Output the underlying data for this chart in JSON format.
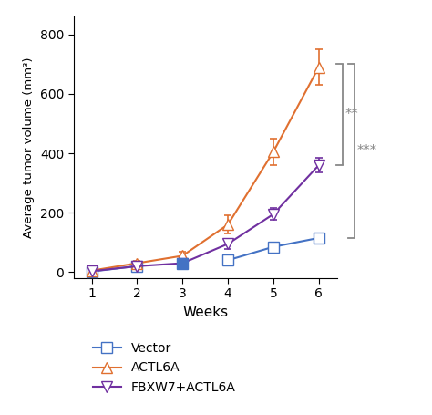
{
  "weeks": [
    1,
    2,
    3,
    4,
    5,
    6
  ],
  "vector": {
    "y": [
      2,
      20,
      30,
      40,
      85,
      115
    ],
    "yerr": [
      2,
      5,
      8,
      10,
      12,
      15
    ],
    "color": "#4472C4",
    "label": "Vector",
    "marker": "s"
  },
  "actl6a": {
    "y": [
      5,
      30,
      55,
      160,
      405,
      690
    ],
    "yerr": [
      3,
      8,
      15,
      30,
      45,
      60
    ],
    "color": "#E07030",
    "label": "ACTL6A",
    "marker": "^"
  },
  "fbxw7": {
    "y": [
      3,
      20,
      30,
      95,
      195,
      360
    ],
    "yerr": [
      2,
      6,
      10,
      18,
      20,
      25
    ],
    "color": "#7030A0",
    "label": "FBXW7+ACTL6A",
    "marker": "v"
  },
  "xlabel": "Weeks",
  "ylabel": "Average tumor volume (mm³)",
  "ylim": [
    -20,
    860
  ],
  "xlim": [
    0.6,
    6.4
  ],
  "yticks": [
    0,
    200,
    400,
    600,
    800
  ],
  "xticks": [
    1,
    2,
    3,
    4,
    5,
    6
  ],
  "markersize": 8,
  "linewidth": 1.5,
  "capsize": 3
}
